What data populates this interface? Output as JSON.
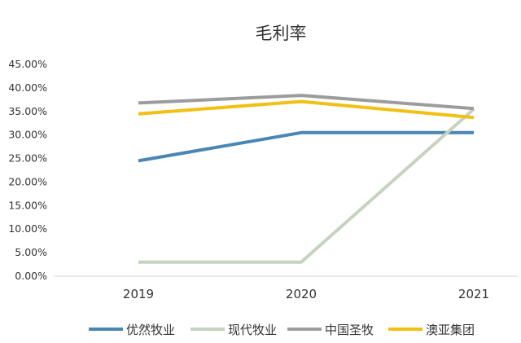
{
  "chart_data": {
    "type": "line",
    "title": "毛利率",
    "xlabel": "",
    "ylabel": "",
    "categories": [
      "2019",
      "2020",
      "2021"
    ],
    "ylim": [
      0,
      45
    ],
    "yticks": [
      "0.00%",
      "5.00%",
      "10.00%",
      "15.00%",
      "20.00%",
      "25.00%",
      "30.00%",
      "35.00%",
      "40.00%",
      "45.00%"
    ],
    "grid": false,
    "legend_position": "bottom",
    "series": [
      {
        "name": "优然牧业",
        "color": "#4a86b4",
        "values": [
          24.5,
          30.5,
          30.5
        ]
      },
      {
        "name": "现代牧业",
        "color": "#c5d3bf",
        "values": [
          3.0,
          3.0,
          35.5
        ]
      },
      {
        "name": "中国圣牧",
        "color": "#9c9c9c",
        "values": [
          36.8,
          38.4,
          35.6
        ]
      },
      {
        "name": "澳亚集团",
        "color": "#f2c012",
        "values": [
          34.5,
          37.1,
          33.7
        ]
      }
    ]
  }
}
